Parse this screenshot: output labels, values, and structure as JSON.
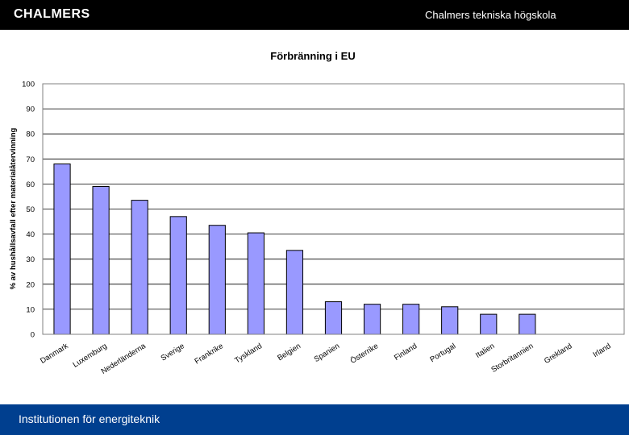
{
  "header": {
    "logo_text": "CHALMERS",
    "school_name": "Chalmers tekniska högskola"
  },
  "footer": {
    "department": "Institutionen för energiteknik"
  },
  "colors": {
    "header_bg": "#000000",
    "footer_bg": "#003f8f",
    "bar_fill": "#9999ff",
    "bar_edge": "#000000",
    "grid": "#000000"
  },
  "chart_data": {
    "type": "bar",
    "title": "Förbränning i EU",
    "xlabel": "",
    "ylabel": "% av hushållsavfall efter materialåtervinning",
    "ylim": [
      0,
      100
    ],
    "yticks": [
      0,
      10,
      20,
      30,
      40,
      50,
      60,
      70,
      80,
      90,
      100
    ],
    "grid": "horizontal",
    "legend": "none",
    "categories": [
      "Danmark",
      "Luxemburg",
      "Nederländerna",
      "Sverige",
      "Frankrike",
      "Tyskland",
      "Belgien",
      "Spanien",
      "Österrike",
      "Finland",
      "Portugal",
      "Italien",
      "Storbritannien",
      "Grekland",
      "Irland"
    ],
    "values": [
      68,
      59,
      53.5,
      47,
      43.5,
      40.5,
      33.5,
      13,
      12,
      12,
      11,
      8,
      8,
      0,
      0
    ]
  }
}
